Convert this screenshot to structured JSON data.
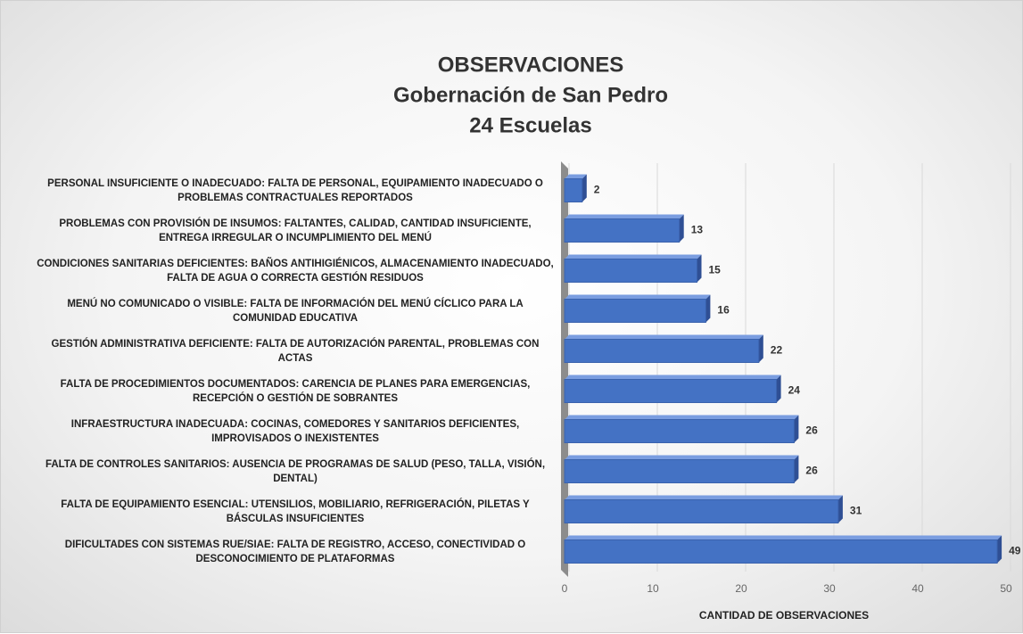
{
  "chart_data": {
    "type": "bar",
    "orientation": "horizontal",
    "title": [
      "OBSERVACIONES",
      "Gobernación de San Pedro",
      "24 Escuelas"
    ],
    "xlabel": "CANTIDAD DE OBSERVACIONES",
    "categories": [
      "PERSONAL INSUFICIENTE O INADECUADO: FALTA DE PERSONAL, EQUIPAMIENTO INADECUADO O PROBLEMAS CONTRACTUALES REPORTADOS",
      "PROBLEMAS CON PROVISIÓN DE INSUMOS: FALTANTES, CALIDAD, CANTIDAD INSUFICIENTE, ENTREGA IRREGULAR O INCUMPLIMIENTO DEL MENÚ",
      "CONDICIONES SANITARIAS DEFICIENTES: BAÑOS ANTIHIGIÉNICOS, ALMACENAMIENTO INADECUADO, FALTA DE AGUA O CORRECTA GESTIÓN RESIDUOS",
      "MENÚ NO COMUNICADO O VISIBLE: FALTA DE INFORMACIÓN DEL MENÚ CÍCLICO PARA LA COMUNIDAD EDUCATIVA",
      "GESTIÓN ADMINISTRATIVA DEFICIENTE: FALTA DE AUTORIZACIÓN PARENTAL, PROBLEMAS CON ACTAS",
      "FALTA DE PROCEDIMIENTOS DOCUMENTADOS: CARENCIA DE PLANES PARA EMERGENCIAS, RECEPCIÓN O GESTIÓN DE SOBRANTES",
      "INFRAESTRUCTURA INADECUADA: COCINAS, COMEDORES Y SANITARIOS DEFICIENTES, IMPROVISADOS O INEXISTENTES",
      "FALTA DE CONTROLES SANITARIOS: AUSENCIA DE PROGRAMAS DE SALUD (PESO, TALLA, VISIÓN, DENTAL)",
      "FALTA DE EQUIPAMIENTO ESENCIAL: UTENSILIOS, MOBILIARIO, REFRIGERACIÓN, PILETAS Y BÁSCULAS INSUFICIENTES",
      "DIFICULTADES CON SISTEMAS RUE/SIAE: FALTA DE REGISTRO, ACCESO, CONECTIVIDAD O DESCONOCIMIENTO DE PLATAFORMAS"
    ],
    "values": [
      2,
      13,
      15,
      16,
      22,
      24,
      26,
      26,
      31,
      49
    ],
    "color": "#4472c4",
    "xlim": [
      0,
      50
    ],
    "xticks": [
      0,
      10,
      20,
      30,
      40,
      50
    ],
    "grid": true
  }
}
